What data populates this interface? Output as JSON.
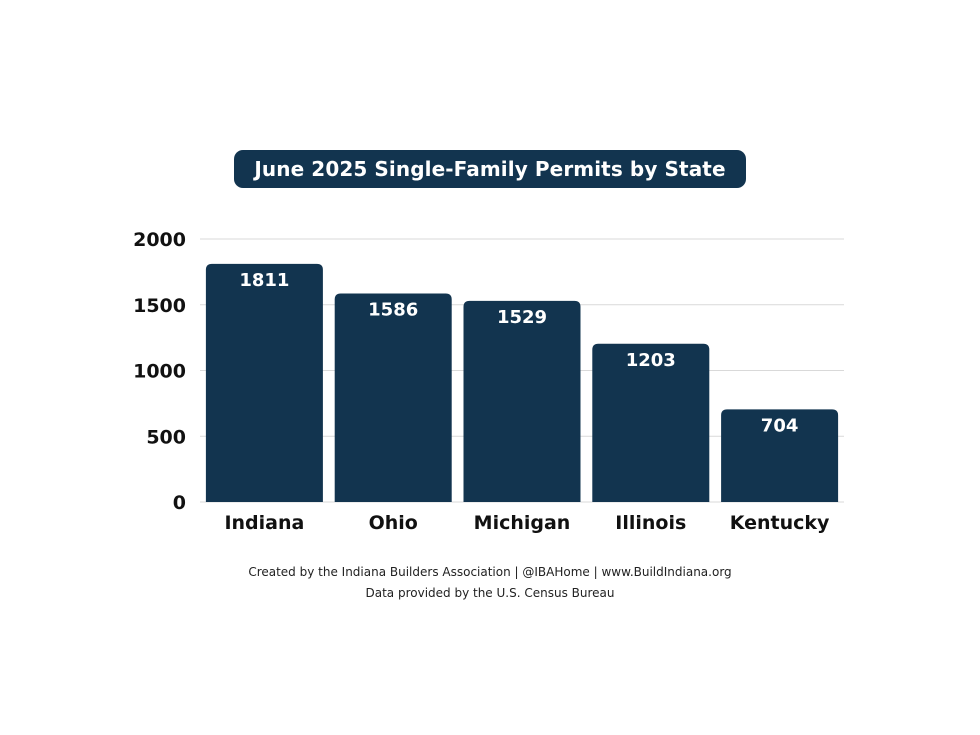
{
  "chart_data": {
    "type": "bar",
    "title": "June 2025 Single-Family Permits by State",
    "categories": [
      "Indiana",
      "Ohio",
      "Michigan",
      "Illinois",
      "Kentucky"
    ],
    "values": [
      1811,
      1586,
      1529,
      1203,
      704
    ],
    "xlabel": "",
    "ylabel": "",
    "ylim": [
      0,
      2000
    ],
    "yticks": [
      "0",
      "500",
      "1000",
      "1500",
      "2000"
    ],
    "grid": true,
    "bar_color": "#12344f",
    "grid_color": "#d9d9d9"
  },
  "footer": {
    "credit": "Created by the Indiana Builders Association | @IBAHome | www.BuildIndiana.org",
    "source": "Data provided by the U.S. Census Bureau"
  }
}
